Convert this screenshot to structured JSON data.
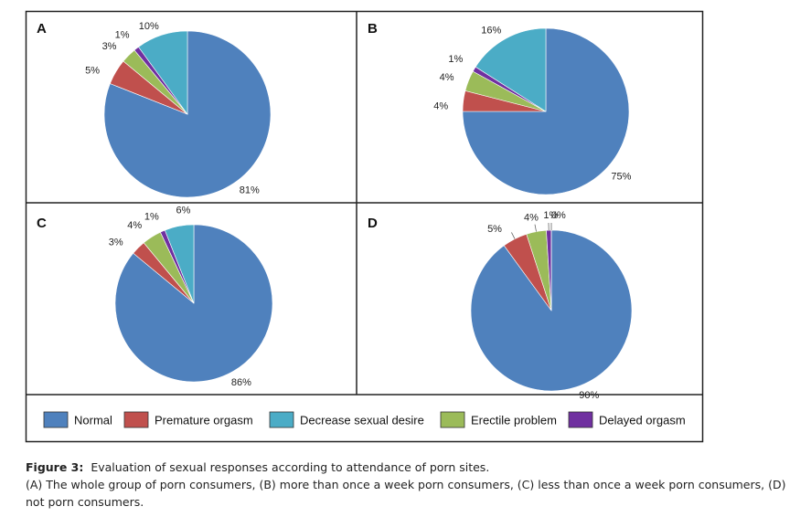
{
  "chart_data": [
    {
      "type": "pie",
      "label": "A",
      "values": [
        81,
        5,
        10,
        3,
        1
      ],
      "value_labels": [
        "81%",
        "5%",
        "10%",
        "3%",
        "1%"
      ]
    },
    {
      "type": "pie",
      "label": "B",
      "values": [
        75,
        4,
        16,
        4,
        1
      ],
      "value_labels": [
        "75%",
        "4%",
        "16%",
        "4%",
        "1%"
      ]
    },
    {
      "type": "pie",
      "label": "C",
      "values": [
        86,
        3,
        6,
        4,
        1
      ],
      "value_labels": [
        "86%",
        "3%",
        "6%",
        "4%",
        "1%"
      ]
    },
    {
      "type": "pie",
      "label": "D",
      "values": [
        90,
        5,
        0,
        4,
        1
      ],
      "value_labels": [
        "90%",
        "5%",
        "0%",
        "4%",
        "1%"
      ]
    }
  ],
  "legend": {
    "names": [
      "Normal",
      "Premature orgasm",
      "Decrease sexual desire",
      "Erectile problem",
      "Delayed orgasm"
    ],
    "colors": [
      "#4f81bd",
      "#c0504d",
      "#4bacc6",
      "#9bbb59",
      "#7030a0"
    ]
  },
  "caption": {
    "label": "Figure 3:",
    "title": "Evaluation of sexual responses according to attendance of porn sites.",
    "text": "(A) The whole group of porn consumers, (B) more than once a week porn consumers, (C) less than once a week porn consumers, (D) not porn consumers."
  }
}
